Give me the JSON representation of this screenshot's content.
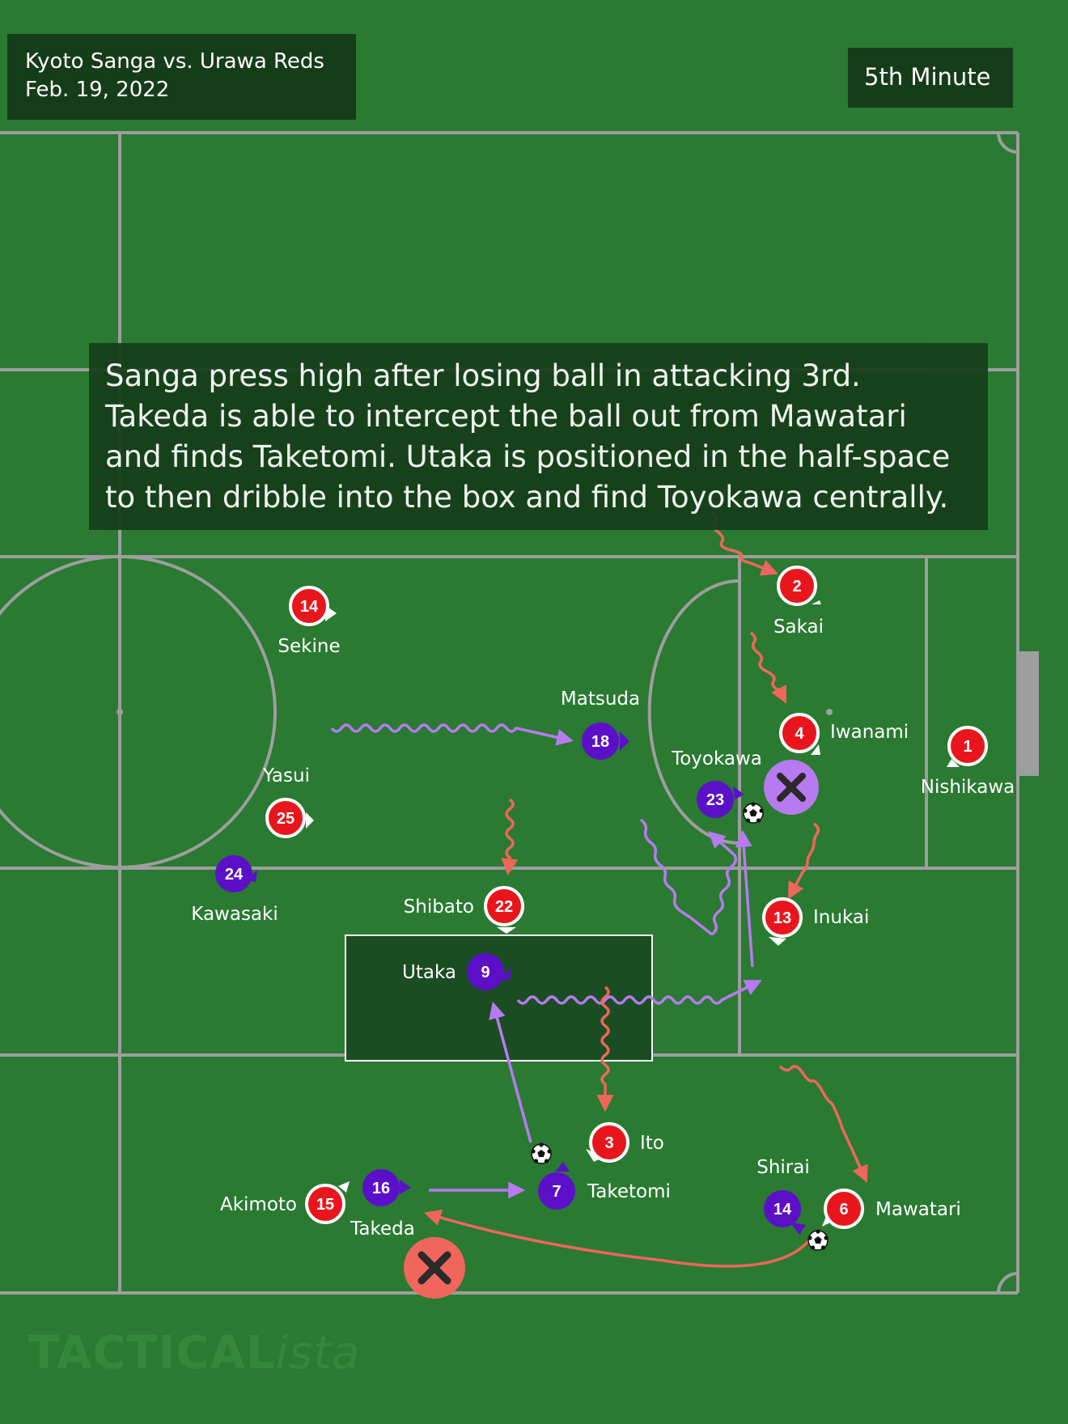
{
  "header": {
    "match": "Kyoto Sanga vs. Urawa Reds",
    "date": "Feb. 19, 2022",
    "minute": "5th Minute"
  },
  "caption": {
    "lines": [
      "Sanga press high after losing ball in attacking 3rd.",
      "Takeda is able to intercept the ball out from Mawatari",
      "and finds Taketomi. Utaka is positioned in the half-space",
      "to then dribble into the box and find Toyokawa centrally."
    ]
  },
  "colors": {
    "pitch": "#2a7a32",
    "line": "#9e9e9e",
    "red_team": "#e8161c",
    "purple_team": "#5b10c8",
    "purple_arrow": "#b77af0",
    "red_arrow": "#f0665c"
  },
  "players": {
    "red": [
      {
        "number": "14",
        "name": "Sekine"
      },
      {
        "number": "2",
        "name": "Sakai"
      },
      {
        "number": "4",
        "name": "Iwanami"
      },
      {
        "number": "1",
        "name": "Nishikawa"
      },
      {
        "number": "25",
        "name": "Yasui"
      },
      {
        "number": "22",
        "name": "Shibato"
      },
      {
        "number": "13",
        "name": "Inukai"
      },
      {
        "number": "3",
        "name": "Ito"
      },
      {
        "number": "15",
        "name": "Akimoto"
      },
      {
        "number": "6",
        "name": "Mawatari"
      }
    ],
    "purple": [
      {
        "number": "18",
        "name": "Matsuda"
      },
      {
        "number": "23",
        "name": "Toyokawa"
      },
      {
        "number": "24",
        "name": "Kawasaki"
      },
      {
        "number": "9",
        "name": "Utaka"
      },
      {
        "number": "16",
        "name": "Takeda"
      },
      {
        "number": "7",
        "name": "Taketomi"
      },
      {
        "number": "14",
        "name": "Shirai"
      }
    ]
  },
  "watermark": {
    "bold": "TACTICAL",
    "italic": "ista"
  }
}
